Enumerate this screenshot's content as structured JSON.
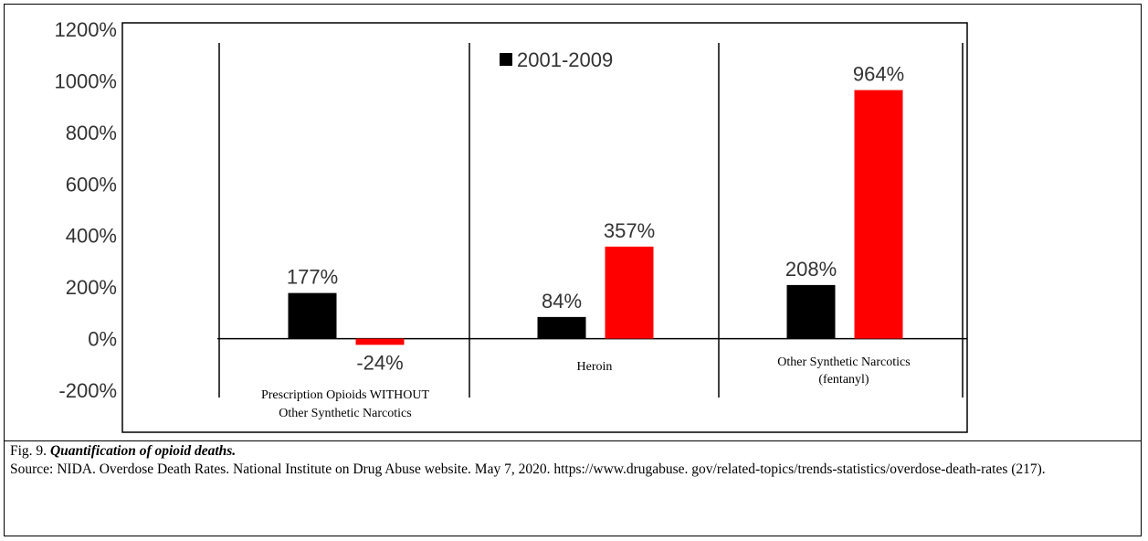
{
  "chart_data": {
    "type": "bar",
    "title": "",
    "xlabel": "",
    "ylabel": "",
    "ylim": [
      -200,
      1200
    ],
    "yticks": [
      "1200%",
      "1000%",
      "800%",
      "600%",
      "400%",
      "200%",
      "0%",
      "-200%"
    ],
    "ytick_values": [
      1200,
      1000,
      800,
      600,
      400,
      200,
      0,
      -200
    ],
    "categories": [
      [
        "Prescription Opioids WITHOUT",
        "Other Synthetic Narcotics"
      ],
      [
        "Heroin"
      ],
      [
        "Other Synthetic Narcotics",
        "(fentanyl)"
      ]
    ],
    "series": [
      {
        "name": "2001-2009",
        "color": "#000000",
        "values": [
          177,
          84,
          208
        ],
        "labels": [
          "177%",
          "84%",
          "208%"
        ]
      },
      {
        "name": "",
        "color": "#ff0000",
        "values": [
          -24,
          357,
          964
        ],
        "labels": [
          "-24%",
          "357%",
          "964%"
        ]
      }
    ],
    "legend": {
      "position": "top-center",
      "text": "2001-2009"
    },
    "grid": false
  },
  "caption": {
    "fig_label": "Fig. 9.",
    "fig_title": "Quantification of  opioid deaths.",
    "source": "Source: NIDA. Overdose Death Rates. National Institute on Drug Abuse website. May 7, 2020. https://www.drugabuse. gov/related-topics/trends-statistics/overdose-death-rates (217)."
  }
}
